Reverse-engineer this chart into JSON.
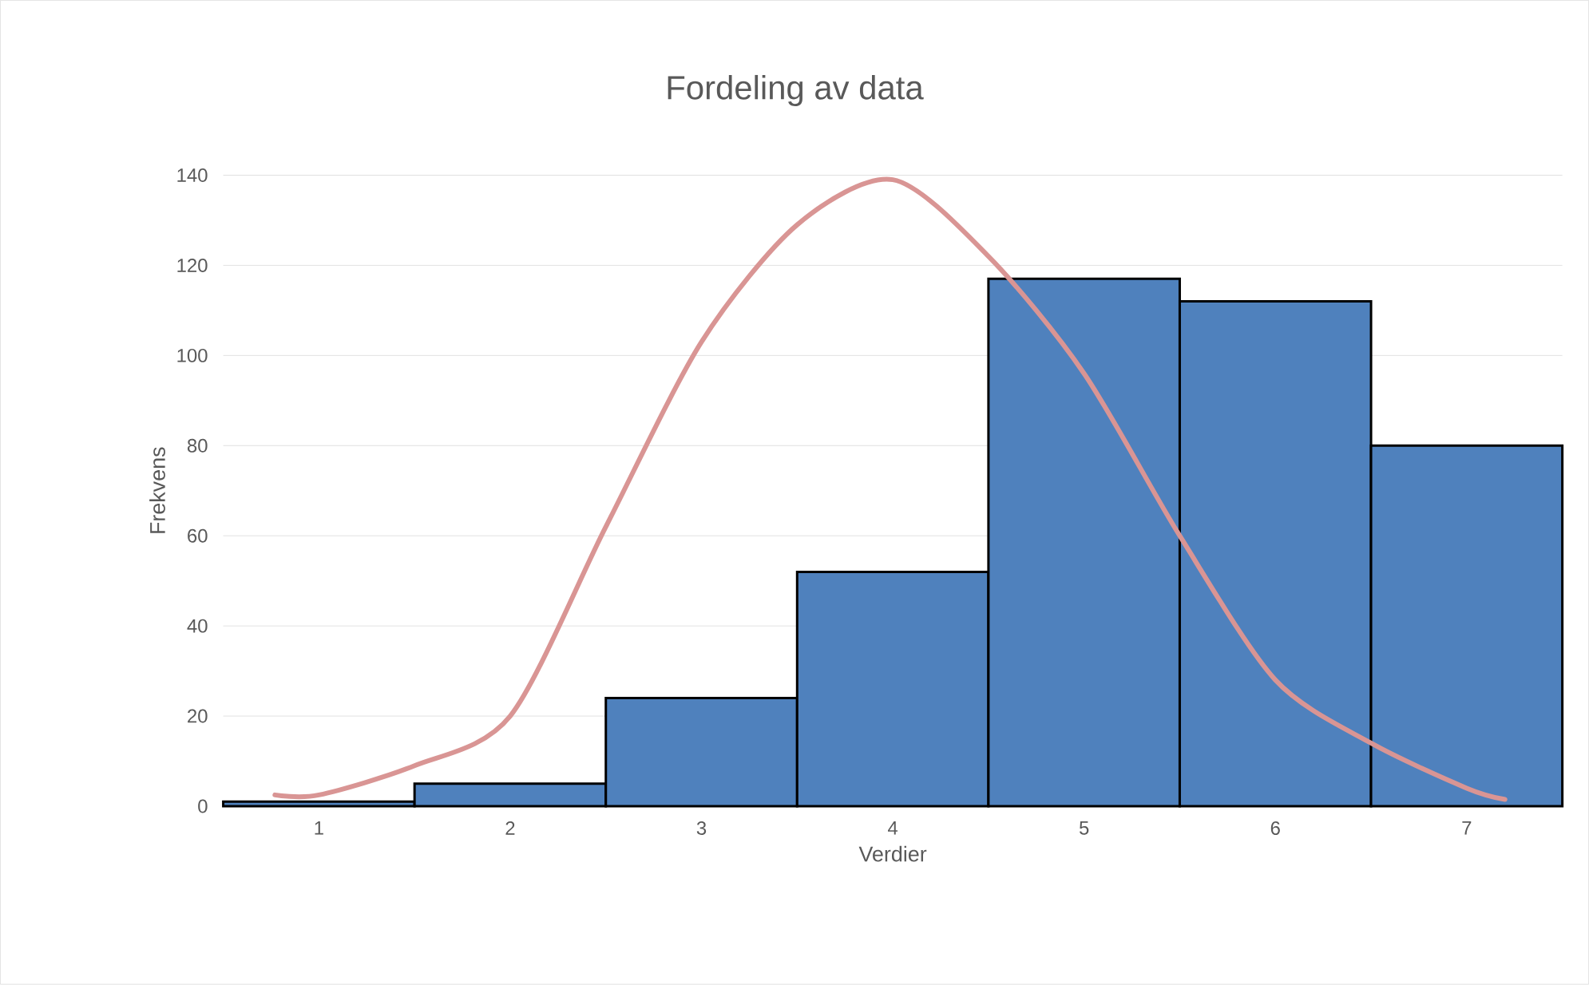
{
  "chart_data": {
    "type": "histogram",
    "title": "Fordeling av data",
    "xlabel": "Verdier",
    "ylabel": "Frekvens",
    "bins": [
      0.5,
      1.5,
      2.5,
      3.5,
      4.5,
      5.5,
      6.5,
      7.5
    ],
    "xlim": [
      0.5,
      7.5
    ],
    "xticks": [
      1,
      2,
      3,
      4,
      5,
      6,
      7
    ],
    "ylim": [
      0,
      140
    ],
    "yticks": [
      0,
      20,
      40,
      60,
      80,
      100,
      120,
      140
    ],
    "grid": "y",
    "legend": false,
    "series": [
      {
        "type": "histogram",
        "color": "#4f81bd",
        "values": [
          1,
          5,
          24,
          52,
          117,
          112,
          80
        ]
      },
      {
        "type": "line",
        "color": "#d99594",
        "x": [
          0.77,
          1,
          1.5,
          2,
          2.5,
          3,
          3.5,
          4,
          4.5,
          5,
          5.5,
          6,
          6.5,
          7,
          7.2
        ],
        "values": [
          2.5,
          2.5,
          9,
          20,
          62,
          103,
          129,
          139,
          122,
          96,
          60,
          28,
          14,
          4,
          1.5
        ]
      }
    ]
  }
}
